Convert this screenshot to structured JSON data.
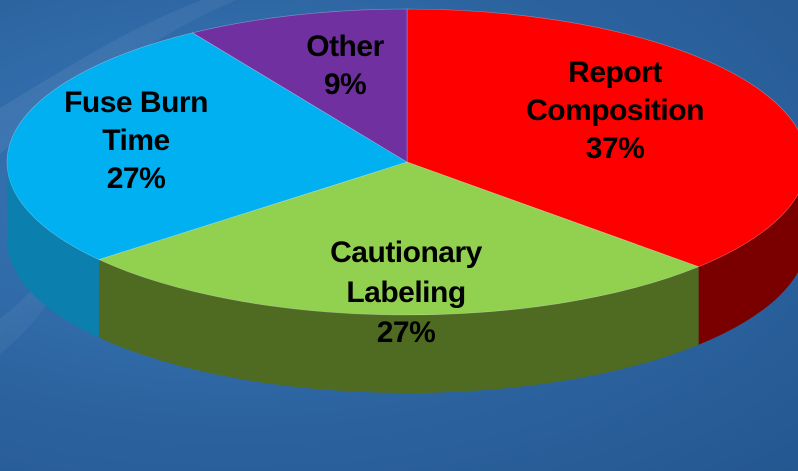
{
  "chart_data": {
    "type": "pie",
    "style": "3d",
    "slices": [
      {
        "name": "Report Composition",
        "label_lines": [
          "Report",
          "Composition",
          "37%"
        ],
        "value": 37,
        "color": "#ff0000",
        "side_color": "#7a0000"
      },
      {
        "name": "Cautionary Labeling",
        "label_lines": [
          "Cautionary",
          "Labeling",
          "27%"
        ],
        "value": 27,
        "color": "#92d050",
        "side_color": "#4f6b22"
      },
      {
        "name": "Fuse Burn Time",
        "label_lines": [
          "Fuse Burn",
          "Time",
          "27%"
        ],
        "value": 27,
        "color": "#00b0f0",
        "side_color": "#0b7fae"
      },
      {
        "name": "Other",
        "label_lines": [
          "Other",
          "9%"
        ],
        "value": 9,
        "color": "#7030a0",
        "side_color": "#4a1f6b"
      }
    ],
    "start_angle_deg": -90,
    "direction": "clockwise",
    "legend": "none"
  },
  "colors": {
    "background": "#2c64a0",
    "edge": "#ffffff"
  }
}
